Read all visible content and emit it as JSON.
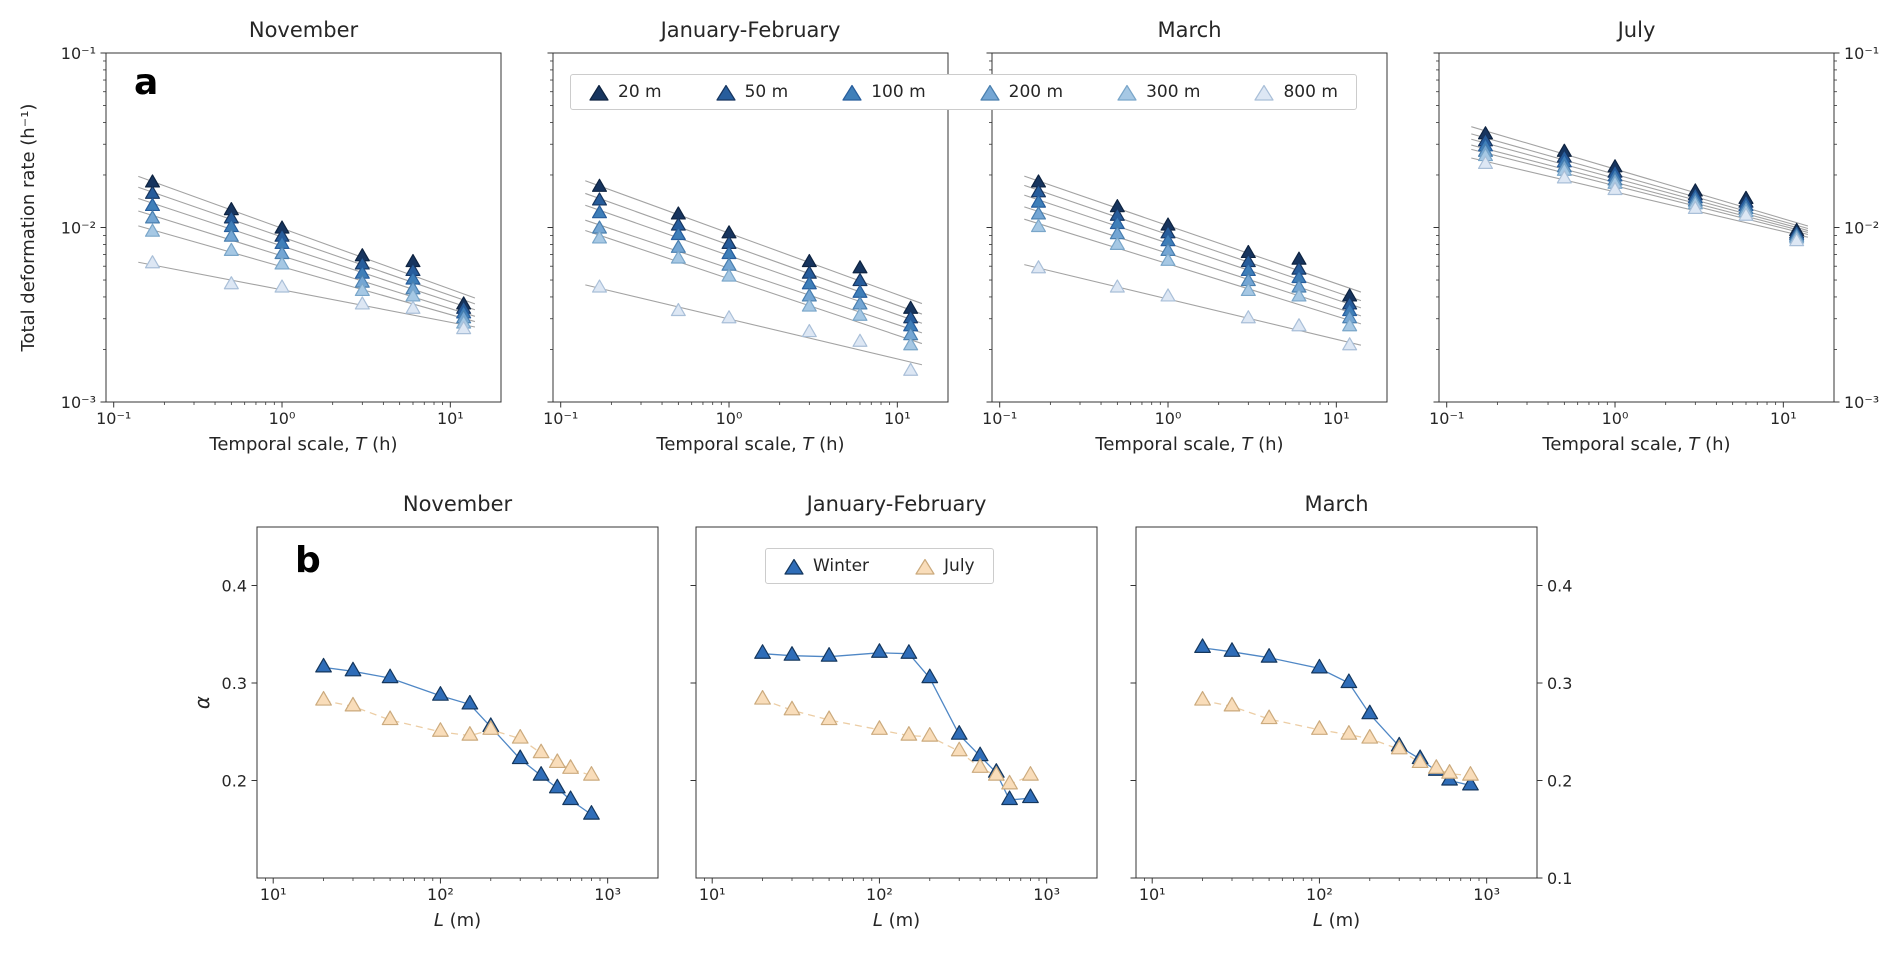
{
  "figure_labels": {
    "a": "a",
    "b": "b"
  },
  "legend_scales": {
    "items": [
      {
        "label": "20 m",
        "fill": "#17355f",
        "edge": "#0e2340"
      },
      {
        "label": "50 m",
        "fill": "#275d9c",
        "edge": "#17355f"
      },
      {
        "label": "100 m",
        "fill": "#3f7fb9",
        "edge": "#275d9c"
      },
      {
        "label": "200 m",
        "fill": "#74a6d4",
        "edge": "#4a7fae"
      },
      {
        "label": "300 m",
        "fill": "#a6c8e4",
        "edge": "#7aa6c9"
      },
      {
        "label": "800 m",
        "fill": "#dde7f4",
        "edge": "#a9bfd8"
      }
    ]
  },
  "legend_season": {
    "items": [
      {
        "label": "Winter",
        "fill": "#2f6db8",
        "edge": "#14365c"
      },
      {
        "label": "July",
        "fill": "#f9ddba",
        "edge": "#cbaa7d"
      }
    ]
  },
  "chart_data": [
    {
      "type": "scatter",
      "row": "a",
      "title": "November",
      "xlabel": "Temporal scale, *T* (h)",
      "ylabel": "Total deformation rate (h⁻¹)",
      "xscale": "log",
      "yscale": "log",
      "xlim": [
        0.09,
        20
      ],
      "ylim": [
        0.001,
        0.1
      ],
      "xticks": [
        {
          "v": 0.1,
          "label": "10⁻¹"
        },
        {
          "v": 1,
          "label": "10⁰"
        },
        {
          "v": 10,
          "label": "10¹"
        }
      ],
      "yticks": [
        {
          "v": 0.001,
          "label": "10⁻³"
        },
        {
          "v": 0.01,
          "label": "10⁻²"
        },
        {
          "v": 0.1,
          "label": "10⁻¹"
        }
      ],
      "ytick_labels": "left",
      "x": [
        0.17,
        0.5,
        1,
        3,
        6,
        12
      ],
      "series": [
        {
          "name": "20 m",
          "fill": "#17355f",
          "edge": "#0e2340",
          "line": "fit",
          "values": [
            0.018,
            0.0125,
            0.0098,
            0.0068,
            0.0063,
            0.0036
          ]
        },
        {
          "name": "50 m",
          "fill": "#275d9c",
          "edge": "#17355f",
          "line": "fit",
          "values": [
            0.0155,
            0.0112,
            0.0088,
            0.0061,
            0.0056,
            0.0034
          ]
        },
        {
          "name": "100 m",
          "fill": "#3f7fb9",
          "edge": "#275d9c",
          "line": "fit",
          "values": [
            0.0132,
            0.01,
            0.008,
            0.0054,
            0.005,
            0.0032
          ]
        },
        {
          "name": "200 m",
          "fill": "#74a6d4",
          "edge": "#4a7fae",
          "line": "fit",
          "values": [
            0.0112,
            0.0088,
            0.007,
            0.0048,
            0.0044,
            0.003
          ]
        },
        {
          "name": "300 m",
          "fill": "#a6c8e4",
          "edge": "#7aa6c9",
          "line": "fit",
          "values": [
            0.0094,
            0.0073,
            0.0061,
            0.0043,
            0.004,
            0.0028
          ]
        },
        {
          "name": "800 m",
          "fill": "#dde7f4",
          "edge": "#a9bfd8",
          "line": "fit",
          "values": [
            0.0062,
            0.0047,
            0.0045,
            0.0036,
            0.0034,
            0.0026
          ]
        }
      ]
    },
    {
      "type": "scatter",
      "row": "a",
      "title": "January-February",
      "xlabel": "Temporal scale, *T* (h)",
      "ylabel": "",
      "xscale": "log",
      "yscale": "log",
      "xlim": [
        0.09,
        20
      ],
      "ylim": [
        0.001,
        0.1
      ],
      "xticks": [
        {
          "v": 0.1,
          "label": "10⁻¹"
        },
        {
          "v": 1,
          "label": "10⁰"
        },
        {
          "v": 10,
          "label": "10¹"
        }
      ],
      "yticks": [
        {
          "v": 0.001,
          "label": "10⁻³"
        },
        {
          "v": 0.01,
          "label": "10⁻²"
        },
        {
          "v": 0.1,
          "label": "10⁻¹"
        }
      ],
      "ytick_labels": "none",
      "x": [
        0.17,
        0.5,
        1,
        3,
        6,
        12
      ],
      "series": [
        {
          "name": "20 m",
          "fill": "#17355f",
          "edge": "#0e2340",
          "line": "fit",
          "values": [
            0.017,
            0.0118,
            0.0092,
            0.0063,
            0.0058,
            0.0034
          ]
        },
        {
          "name": "50 m",
          "fill": "#275d9c",
          "edge": "#17355f",
          "line": "fit",
          "values": [
            0.0142,
            0.0102,
            0.008,
            0.0054,
            0.0049,
            0.003
          ]
        },
        {
          "name": "100 m",
          "fill": "#3f7fb9",
          "edge": "#275d9c",
          "line": "fit",
          "values": [
            0.012,
            0.009,
            0.007,
            0.0047,
            0.0042,
            0.0027
          ]
        },
        {
          "name": "200 m",
          "fill": "#74a6d4",
          "edge": "#4a7fae",
          "line": "fit",
          "values": [
            0.0098,
            0.0076,
            0.006,
            0.004,
            0.0036,
            0.0024
          ]
        },
        {
          "name": "300 m",
          "fill": "#a6c8e4",
          "edge": "#7aa6c9",
          "line": "fit",
          "values": [
            0.0086,
            0.0066,
            0.0052,
            0.0035,
            0.0031,
            0.0021
          ]
        },
        {
          "name": "800 m",
          "fill": "#dde7f4",
          "edge": "#a9bfd8",
          "line": "fit",
          "values": [
            0.0045,
            0.0033,
            0.003,
            0.0025,
            0.0022,
            0.0015
          ]
        }
      ]
    },
    {
      "type": "scatter",
      "row": "a",
      "title": "March",
      "xlabel": "Temporal scale, *T* (h)",
      "ylabel": "",
      "xscale": "log",
      "yscale": "log",
      "xlim": [
        0.09,
        20
      ],
      "ylim": [
        0.001,
        0.1
      ],
      "xticks": [
        {
          "v": 0.1,
          "label": "10⁻¹"
        },
        {
          "v": 1,
          "label": "10⁰"
        },
        {
          "v": 10,
          "label": "10¹"
        }
      ],
      "yticks": [
        {
          "v": 0.001,
          "label": "10⁻³"
        },
        {
          "v": 0.01,
          "label": "10⁻²"
        },
        {
          "v": 0.1,
          "label": "10⁻¹"
        }
      ],
      "ytick_labels": "none",
      "x": [
        0.17,
        0.5,
        1,
        3,
        6,
        12
      ],
      "series": [
        {
          "name": "20 m",
          "fill": "#17355f",
          "edge": "#0e2340",
          "line": "fit",
          "values": [
            0.018,
            0.013,
            0.0102,
            0.0071,
            0.0065,
            0.004
          ]
        },
        {
          "name": "50 m",
          "fill": "#275d9c",
          "edge": "#17355f",
          "line": "fit",
          "values": [
            0.0158,
            0.0116,
            0.0092,
            0.0063,
            0.0057,
            0.0036
          ]
        },
        {
          "name": "100 m",
          "fill": "#3f7fb9",
          "edge": "#275d9c",
          "line": "fit",
          "values": [
            0.0138,
            0.0104,
            0.0083,
            0.0056,
            0.0051,
            0.0033
          ]
        },
        {
          "name": "200 m",
          "fill": "#74a6d4",
          "edge": "#4a7fae",
          "line": "fit",
          "values": [
            0.0118,
            0.0091,
            0.0073,
            0.0049,
            0.0045,
            0.003
          ]
        },
        {
          "name": "300 m",
          "fill": "#a6c8e4",
          "edge": "#7aa6c9",
          "line": "fit",
          "values": [
            0.01,
            0.0079,
            0.0064,
            0.0043,
            0.004,
            0.0027
          ]
        },
        {
          "name": "800 m",
          "fill": "#dde7f4",
          "edge": "#a9bfd8",
          "line": "fit",
          "values": [
            0.0058,
            0.0045,
            0.004,
            0.003,
            0.0027,
            0.0021
          ]
        }
      ]
    },
    {
      "type": "scatter",
      "row": "a",
      "title": "July",
      "xlabel": "Temporal scale, *T* (h)",
      "ylabel": "",
      "xscale": "log",
      "yscale": "log",
      "xlim": [
        0.09,
        20
      ],
      "ylim": [
        0.001,
        0.1
      ],
      "xticks": [
        {
          "v": 0.1,
          "label": "10⁻¹"
        },
        {
          "v": 1,
          "label": "10⁰"
        },
        {
          "v": 10,
          "label": "10¹"
        }
      ],
      "yticks": [
        {
          "v": 0.001,
          "label": "10⁻³"
        },
        {
          "v": 0.01,
          "label": "10⁻²"
        },
        {
          "v": 0.1,
          "label": "10⁻¹"
        }
      ],
      "ytick_labels": "right",
      "x": [
        0.17,
        0.5,
        1,
        3,
        6,
        12
      ],
      "series": [
        {
          "name": "20 m",
          "fill": "#17355f",
          "edge": "#0e2340",
          "line": "fit",
          "values": [
            0.034,
            0.027,
            0.022,
            0.016,
            0.0145,
            0.0095
          ]
        },
        {
          "name": "50 m",
          "fill": "#275d9c",
          "edge": "#17355f",
          "line": "fit",
          "values": [
            0.031,
            0.025,
            0.0205,
            0.0152,
            0.0138,
            0.0092
          ]
        },
        {
          "name": "100 m",
          "fill": "#3f7fb9",
          "edge": "#275d9c",
          "line": "fit",
          "values": [
            0.029,
            0.0235,
            0.0195,
            0.0146,
            0.0132,
            0.009
          ]
        },
        {
          "name": "200 m",
          "fill": "#74a6d4",
          "edge": "#4a7fae",
          "line": "fit",
          "values": [
            0.027,
            0.022,
            0.0185,
            0.014,
            0.0127,
            0.0088
          ]
        },
        {
          "name": "300 m",
          "fill": "#a6c8e4",
          "edge": "#7aa6c9",
          "line": "fit",
          "values": [
            0.0255,
            0.021,
            0.0177,
            0.0135,
            0.0122,
            0.0086
          ]
        },
        {
          "name": "800 m",
          "fill": "#dde7f4",
          "edge": "#a9bfd8",
          "line": "fit",
          "values": [
            0.023,
            0.019,
            0.0163,
            0.0127,
            0.0116,
            0.0083
          ]
        }
      ]
    },
    {
      "type": "scatter",
      "row": "b",
      "title": "November",
      "xlabel": "*L* (m)",
      "ylabel": "*α*",
      "xscale": "log",
      "yscale": "linear",
      "xlim": [
        8,
        2000
      ],
      "ylim": [
        0.1,
        0.46
      ],
      "xticks": [
        {
          "v": 10,
          "label": "10¹"
        },
        {
          "v": 100,
          "label": "10²"
        },
        {
          "v": 1000,
          "label": "10³"
        }
      ],
      "yticks": [
        {
          "v": 0.2,
          "label": "0.2"
        },
        {
          "v": 0.3,
          "label": "0.3"
        },
        {
          "v": 0.4,
          "label": "0.4"
        }
      ],
      "ytick_labels": "left",
      "x": [
        20,
        30,
        50,
        100,
        150,
        200,
        300,
        400,
        500,
        600,
        800
      ],
      "series": [
        {
          "name": "Winter",
          "fill": "#2f6db8",
          "edge": "#14365c",
          "line": "solid",
          "line_color": "#4f87c5",
          "values": [
            0.316,
            0.312,
            0.305,
            0.287,
            0.278,
            0.255,
            0.222,
            0.205,
            0.192,
            0.18,
            0.165
          ]
        },
        {
          "name": "July",
          "fill": "#f9ddba",
          "edge": "#cbaa7d",
          "line": "dashed",
          "line_color": "#eccda4",
          "values": [
            0.282,
            0.276,
            0.262,
            0.25,
            0.246,
            0.252,
            0.243,
            0.228,
            0.218,
            0.212,
            0.205
          ]
        }
      ]
    },
    {
      "type": "scatter",
      "row": "b",
      "title": "January-February",
      "xlabel": "*L* (m)",
      "ylabel": "",
      "xscale": "log",
      "yscale": "linear",
      "xlim": [
        8,
        2000
      ],
      "ylim": [
        0.1,
        0.46
      ],
      "xticks": [
        {
          "v": 10,
          "label": "10¹"
        },
        {
          "v": 100,
          "label": "10²"
        },
        {
          "v": 1000,
          "label": "10³"
        }
      ],
      "yticks": [
        {
          "v": 0.2,
          "label": "0.2"
        },
        {
          "v": 0.3,
          "label": "0.3"
        },
        {
          "v": 0.4,
          "label": "0.4"
        }
      ],
      "ytick_labels": "none",
      "x": [
        20,
        30,
        50,
        100,
        150,
        200,
        300,
        400,
        500,
        600,
        800
      ],
      "series": [
        {
          "name": "Winter",
          "fill": "#2f6db8",
          "edge": "#14365c",
          "line": "solid",
          "line_color": "#4f87c5",
          "values": [
            0.33,
            0.328,
            0.327,
            0.331,
            0.33,
            0.305,
            0.247,
            0.225,
            0.208,
            0.18,
            0.182
          ]
        },
        {
          "name": "July",
          "fill": "#f9ddba",
          "edge": "#cbaa7d",
          "line": "dashed",
          "line_color": "#eccda4",
          "values": [
            0.283,
            0.272,
            0.262,
            0.252,
            0.246,
            0.245,
            0.23,
            0.213,
            0.205,
            0.196,
            0.205
          ]
        }
      ]
    },
    {
      "type": "scatter",
      "row": "b",
      "title": "March",
      "xlabel": "*L* (m)",
      "ylabel": "",
      "xscale": "log",
      "yscale": "linear",
      "xlim": [
        8,
        2000
      ],
      "ylim": [
        0.1,
        0.46
      ],
      "xticks": [
        {
          "v": 10,
          "label": "10¹"
        },
        {
          "v": 100,
          "label": "10²"
        },
        {
          "v": 1000,
          "label": "10³"
        }
      ],
      "yticks": [
        {
          "v": 0.1,
          "label": "0.1"
        },
        {
          "v": 0.2,
          "label": "0.2"
        },
        {
          "v": 0.3,
          "label": "0.3"
        },
        {
          "v": 0.4,
          "label": "0.4"
        }
      ],
      "ytick_labels": "right",
      "x": [
        20,
        30,
        50,
        100,
        150,
        200,
        300,
        400,
        500,
        600,
        800
      ],
      "series": [
        {
          "name": "Winter",
          "fill": "#2f6db8",
          "edge": "#14365c",
          "line": "solid",
          "line_color": "#4f87c5",
          "values": [
            0.336,
            0.332,
            0.326,
            0.315,
            0.3,
            0.268,
            0.235,
            0.222,
            0.21,
            0.2,
            0.195
          ]
        },
        {
          "name": "July",
          "fill": "#f9ddba",
          "edge": "#cbaa7d",
          "line": "dashed",
          "line_color": "#eccda4",
          "values": [
            0.282,
            0.276,
            0.263,
            0.252,
            0.247,
            0.243,
            0.232,
            0.218,
            0.212,
            0.207,
            0.205
          ]
        }
      ]
    }
  ]
}
